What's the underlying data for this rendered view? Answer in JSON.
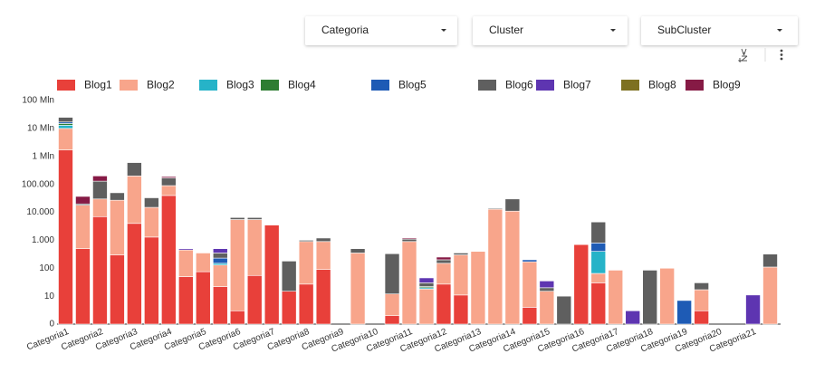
{
  "filters": [
    "Categoria",
    "Cluster",
    "SubCluster"
  ],
  "chart_data": {
    "type": "stacked_bar",
    "log_scale": true,
    "grid": false,
    "legend": "top",
    "categories": [
      "Categoria1",
      null,
      "Categoria2",
      null,
      "Categoria3",
      null,
      "Categoria4",
      null,
      "Categoria5",
      null,
      "Categoria6",
      null,
      "Categoria7",
      null,
      "Categoria8",
      null,
      "Categoria9",
      null,
      "Categoria10",
      null,
      "Categoria11",
      null,
      "Categoria12",
      null,
      "Categoria13",
      null,
      "Categoria14",
      null,
      "Categoria15",
      null,
      "Categoria16",
      null,
      "Categoria17",
      null,
      "Categoria18",
      null,
      "Categoria19",
      null,
      "Categoria20",
      null,
      "Categoria21",
      null
    ],
    "ylim": [
      0,
      100000000
    ],
    "yticks": [
      0,
      10,
      100,
      {
        "value": 1000,
        "label": "1.000"
      },
      {
        "value": 10000,
        "label": "10.000"
      },
      {
        "value": 100000,
        "label": "100.000"
      },
      {
        "value": 1000000,
        "label": "1 Mln"
      },
      {
        "value": 10000000,
        "label": "10 Mln"
      },
      {
        "value": 100000000,
        "label": "100 Mln"
      }
    ],
    "series": [
      {
        "name": "Blog1",
        "color": "#e8403a",
        "values": [
          1700000,
          500,
          7000,
          300,
          4000,
          1300,
          40000,
          50,
          75,
          22,
          3,
          55,
          3500,
          15,
          27,
          90,
          null,
          null,
          null,
          2,
          null,
          null,
          27,
          11,
          null,
          null,
          null,
          4,
          null,
          null,
          700,
          30,
          null,
          null,
          null,
          null,
          null,
          3,
          null,
          null,
          null,
          null
        ]
      },
      {
        "name": "Blog2",
        "color": "#f8a58b",
        "values": [
          8300000,
          17500,
          23000,
          26700,
          196000,
          13700,
          50000,
          400,
          275,
          108,
          5500,
          5445,
          null,
          null,
          873,
          810,
          null,
          350,
          null,
          10,
          900,
          18,
          123,
          289,
          400,
          13000,
          11000,
          166,
          15,
          null,
          null,
          35,
          85,
          null,
          null,
          100,
          null,
          14,
          null,
          null,
          null,
          110
        ]
      },
      {
        "name": "Blog3",
        "color": "#26b3c8",
        "values": [
          3000000,
          null,
          null,
          null,
          null,
          null,
          null,
          null,
          null,
          20,
          null,
          null,
          null,
          null,
          null,
          null,
          null,
          null,
          null,
          null,
          null,
          2,
          null,
          null,
          null,
          null,
          null,
          null,
          null,
          null,
          null,
          335,
          null,
          null,
          null,
          null,
          null,
          null,
          null,
          null,
          null,
          null
        ]
      },
      {
        "name": "Blog4",
        "color": "#2e7d32",
        "values": [
          2000000,
          null,
          null,
          null,
          null,
          null,
          null,
          null,
          null,
          null,
          null,
          null,
          null,
          null,
          null,
          null,
          null,
          null,
          null,
          null,
          null,
          2,
          null,
          null,
          null,
          null,
          null,
          null,
          null,
          null,
          null,
          null,
          null,
          null,
          null,
          null,
          null,
          null,
          null,
          null,
          null,
          null
        ]
      },
      {
        "name": "Blog5",
        "color": "#1e5bb5",
        "values": [
          2000000,
          null,
          null,
          null,
          null,
          null,
          null,
          null,
          null,
          80,
          null,
          null,
          null,
          null,
          null,
          null,
          null,
          null,
          null,
          null,
          null,
          null,
          null,
          null,
          null,
          null,
          null,
          30,
          null,
          null,
          null,
          400,
          null,
          null,
          null,
          null,
          7,
          null,
          null,
          null,
          null,
          null
        ]
      },
      {
        "name": "Blog6",
        "color": "#5f5f5f",
        "values": [
          8000000,
          2000,
          100000,
          23000,
          400000,
          18000,
          80000,
          null,
          null,
          120,
          1000,
          1000,
          null,
          165,
          100,
          300,
          null,
          150,
          null,
          318,
          200,
          8,
          50,
          50,
          null,
          1000,
          19000,
          null,
          5,
          10,
          null,
          3700,
          null,
          null,
          85,
          null,
          null,
          13,
          null,
          null,
          null,
          210
        ]
      },
      {
        "name": "Blog7",
        "color": "#5e35b1",
        "values": [
          null,
          null,
          null,
          null,
          null,
          null,
          null,
          50,
          null,
          150,
          null,
          null,
          null,
          null,
          null,
          null,
          null,
          null,
          null,
          null,
          null,
          15,
          null,
          null,
          null,
          null,
          null,
          null,
          15,
          null,
          null,
          null,
          null,
          3,
          null,
          null,
          null,
          null,
          null,
          null,
          11,
          null
        ]
      },
      {
        "name": "Blog8",
        "color": "#7d7020",
        "values": [
          null,
          null,
          null,
          null,
          null,
          null,
          null,
          null,
          null,
          null,
          null,
          null,
          null,
          null,
          null,
          null,
          null,
          null,
          null,
          null,
          null,
          null,
          null,
          null,
          null,
          null,
          null,
          null,
          null,
          null,
          null,
          null,
          null,
          null,
          null,
          null,
          null,
          null,
          null,
          null,
          null,
          null
        ]
      },
      {
        "name": "Blog9",
        "color": "#861a45",
        "values": [
          null,
          17000,
          70000,
          null,
          null,
          null,
          20000,
          null,
          null,
          null,
          null,
          null,
          null,
          null,
          null,
          null,
          null,
          null,
          null,
          null,
          100,
          null,
          50,
          null,
          null,
          null,
          null,
          null,
          null,
          null,
          null,
          null,
          null,
          null,
          null,
          null,
          null,
          null,
          null,
          null,
          null,
          null
        ]
      }
    ]
  }
}
